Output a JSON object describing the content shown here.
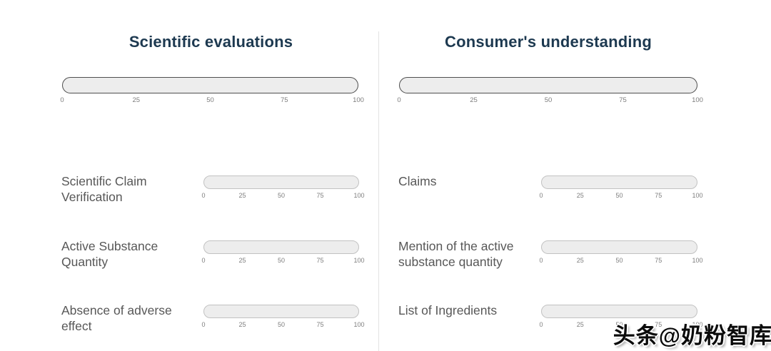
{
  "columns": [
    {
      "title": "Scientific evaluations",
      "rows": [
        {
          "label": "Scientific Claim Verification"
        },
        {
          "label": "Active Substance Quantity"
        },
        {
          "label": "Absence of adverse effect"
        }
      ]
    },
    {
      "title": "Consumer's understanding",
      "rows": [
        {
          "label": "Claims"
        },
        {
          "label": "Mention of the active substance quantity"
        },
        {
          "label": "List of Ingredients"
        }
      ]
    }
  ],
  "scale": {
    "ticks": [
      "0",
      "25",
      "50",
      "75",
      "100"
    ]
  },
  "watermark": {
    "text": "头条@奶粉智库"
  },
  "colors": {
    "title": "#1d3950",
    "label": "#575757",
    "tick": "#7d7d7d",
    "track_fill": "#ededed",
    "track_border_big": "#4f4f4f",
    "track_border_small": "#c2c2c2",
    "divider": "#e3e3e3",
    "watermark_text": "#0b0b0b"
  }
}
